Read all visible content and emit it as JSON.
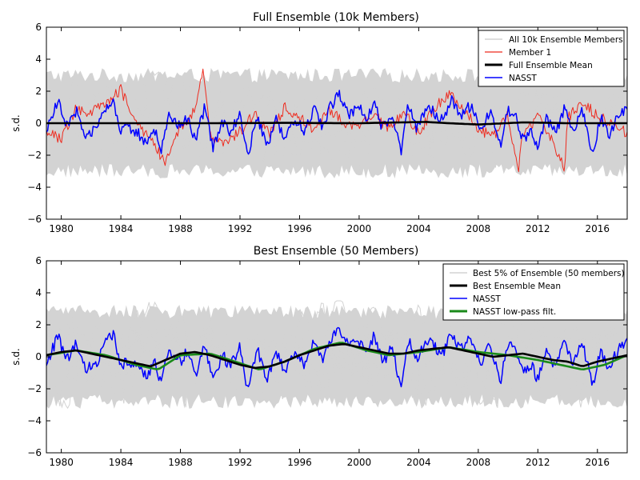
{
  "colors": {
    "ensemble": "#d3d3d3",
    "member": "#ee2b1f",
    "mean": "#000000",
    "nasst": "#0000ff",
    "lowpass": "#1a8a1a"
  },
  "chart_data": [
    {
      "type": "line",
      "title": "Full Ensemble (10k Members)",
      "ylabel": "s.d.",
      "xlabel": "",
      "xlim": [
        1979.0,
        2018.0
      ],
      "ylim": [
        -6,
        6
      ],
      "x_ticks": [
        1980,
        1984,
        1988,
        1992,
        1996,
        2000,
        2004,
        2008,
        2012,
        2016
      ],
      "x_tick_labels": [
        "1980",
        "1984",
        "1988",
        "1992",
        "1996",
        "2000",
        "2004",
        "2008",
        "2012",
        "2016"
      ],
      "y_ticks": [
        -6,
        -4,
        -2,
        0,
        2,
        4,
        6
      ],
      "y_tick_labels": [
        "−6",
        "−4",
        "−2",
        "0",
        "2",
        "4",
        "6"
      ],
      "legend_position": "top-right",
      "envelope": {
        "name": "All 10k Ensemble Members",
        "lower_approx": -3.0,
        "upper_approx": 3.0,
        "extreme_min": -4.6,
        "extreme_max": 4.0
      },
      "series": [
        {
          "name": "Member 1",
          "key": "member",
          "x": [
            1979.0,
            1980.0,
            1981.0,
            1982.0,
            1983.0,
            1984.0,
            1985.0,
            1986.0,
            1987.0,
            1988.0,
            1989.0,
            1989.5,
            1990.0,
            1991.0,
            1992.0,
            1993.0,
            1994.0,
            1995.0,
            1996.0,
            1997.0,
            1998.0,
            1999.0,
            2000.0,
            2001.0,
            2002.0,
            2003.0,
            2004.0,
            2005.0,
            2006.0,
            2007.0,
            2008.0,
            2009.0,
            2010.0,
            2010.7,
            2011.0,
            2012.0,
            2013.0,
            2013.8,
            2014.0,
            2015.0,
            2016.0,
            2017.0,
            2018.0
          ],
          "y": [
            -0.4,
            -1.0,
            0.9,
            0.7,
            1.3,
            2.1,
            0.1,
            -1.0,
            -2.6,
            -0.2,
            0.8,
            3.3,
            -0.8,
            -1.4,
            -0.5,
            0.6,
            -0.7,
            1.0,
            0.3,
            -0.4,
            0.8,
            0.0,
            -0.3,
            0.5,
            -0.4,
            0.7,
            -0.6,
            0.9,
            1.8,
            0.9,
            -0.4,
            -0.8,
            0.5,
            -3.0,
            -0.6,
            0.4,
            -1.2,
            -2.8,
            0.3,
            1.4,
            0.4,
            0.0,
            -0.6
          ]
        },
        {
          "name": "Full Ensemble Mean",
          "key": "mean",
          "x": [
            1979.0,
            1985.0,
            1990.0,
            1995.0,
            2000.0,
            2004.5,
            2006.0,
            2008.0,
            2011.0,
            2014.0,
            2018.0
          ],
          "y": [
            0.0,
            0.0,
            0.0,
            0.02,
            0.0,
            0.08,
            0.0,
            -0.08,
            0.05,
            0.0,
            0.0
          ]
        },
        {
          "name": "NASST",
          "key": "nasst",
          "x": [
            1979.0,
            1979.8,
            1980.3,
            1981.0,
            1981.6,
            1982.5,
            1983.0,
            1983.5,
            1984.0,
            1984.5,
            1985.0,
            1985.8,
            1986.2,
            1986.7,
            1987.2,
            1988.0,
            1988.5,
            1989.0,
            1989.6,
            1990.2,
            1990.8,
            1991.3,
            1992.0,
            1992.5,
            1993.2,
            1993.8,
            1994.4,
            1995.0,
            1995.7,
            1996.3,
            1997.0,
            1997.5,
            1998.1,
            1998.7,
            1999.3,
            2000.0,
            2000.5,
            2001.0,
            2001.6,
            2002.2,
            2002.8,
            2003.3,
            2003.8,
            2004.5,
            2005.0,
            2005.6,
            2006.2,
            2006.8,
            2007.5,
            2008.2,
            2008.8,
            2009.5,
            2010.0,
            2010.6,
            2011.0,
            2011.5,
            2012.0,
            2012.5,
            2013.2,
            2013.8,
            2014.3,
            2015.0,
            2015.7,
            2016.2,
            2016.8,
            2017.3,
            2018.0
          ],
          "y": [
            -0.5,
            1.4,
            -0.3,
            0.8,
            -0.8,
            -0.2,
            0.9,
            1.5,
            -0.6,
            -0.2,
            -0.5,
            -1.3,
            -0.1,
            -1.8,
            0.6,
            -0.3,
            0.4,
            -1.2,
            0.9,
            -1.5,
            0.2,
            -0.6,
            0.6,
            -2.0,
            0.4,
            -1.6,
            0.3,
            -0.9,
            0.2,
            -0.4,
            0.9,
            -0.2,
            1.1,
            1.8,
            0.6,
            1.0,
            0.3,
            1.3,
            -0.4,
            0.6,
            -1.9,
            1.2,
            -0.3,
            1.0,
            0.7,
            0.2,
            1.4,
            0.5,
            1.1,
            -0.5,
            0.8,
            -1.6,
            0.9,
            0.2,
            -1.1,
            -0.4,
            -1.4,
            0.3,
            -0.6,
            1.0,
            -0.5,
            0.8,
            -1.9,
            0.4,
            -0.8,
            0.3,
            1.0
          ]
        }
      ]
    },
    {
      "type": "line",
      "title": "Best Ensemble (50 Members)",
      "ylabel": "s.d.",
      "xlabel": "",
      "xlim": [
        1979.0,
        2018.0
      ],
      "ylim": [
        -6,
        6
      ],
      "x_ticks": [
        1980,
        1984,
        1988,
        1992,
        1996,
        2000,
        2004,
        2008,
        2012,
        2016
      ],
      "x_tick_labels": [
        "1980",
        "1984",
        "1988",
        "1992",
        "1996",
        "2000",
        "2004",
        "2008",
        "2012",
        "2016"
      ],
      "y_ticks": [
        -6,
        -4,
        -2,
        0,
        2,
        4,
        6
      ],
      "y_tick_labels": [
        "−6",
        "−4",
        "−2",
        "0",
        "2",
        "4",
        "6"
      ],
      "legend_position": "top-right",
      "envelope": {
        "name": "Best 5% of Ensemble (50 members)",
        "lower_approx": -2.8,
        "upper_approx": 2.8,
        "extreme_min": -3.9,
        "extreme_max": 3.7
      },
      "series": [
        {
          "name": "Best Ensemble Mean",
          "key": "mean",
          "x": [
            1979.0,
            1980.0,
            1981.0,
            1982.0,
            1983.0,
            1984.0,
            1985.0,
            1986.0,
            1987.0,
            1988.0,
            1989.0,
            1990.0,
            1991.0,
            1992.0,
            1993.0,
            1994.0,
            1995.0,
            1996.0,
            1997.0,
            1998.0,
            1999.0,
            2000.0,
            2001.0,
            2002.0,
            2003.0,
            2004.0,
            2005.0,
            2006.0,
            2007.0,
            2008.0,
            2009.0,
            2010.0,
            2011.0,
            2012.0,
            2013.0,
            2014.0,
            2015.0,
            2016.0,
            2017.0,
            2018.0
          ],
          "y": [
            0.1,
            0.3,
            0.4,
            0.2,
            0.0,
            -0.2,
            -0.4,
            -0.6,
            -0.2,
            0.2,
            0.3,
            0.1,
            -0.2,
            -0.5,
            -0.7,
            -0.6,
            -0.3,
            0.1,
            0.4,
            0.7,
            0.8,
            0.6,
            0.4,
            0.2,
            0.2,
            0.4,
            0.5,
            0.6,
            0.4,
            0.2,
            0.0,
            0.1,
            0.2,
            0.0,
            -0.2,
            -0.3,
            -0.6,
            -0.3,
            -0.1,
            0.1
          ]
        },
        {
          "name": "NASST",
          "key": "nasst",
          "x": [
            1979.0,
            1979.8,
            1980.3,
            1981.0,
            1981.6,
            1982.5,
            1983.0,
            1983.5,
            1984.0,
            1984.5,
            1985.0,
            1985.8,
            1986.2,
            1986.7,
            1987.2,
            1988.0,
            1988.5,
            1989.0,
            1989.6,
            1990.2,
            1990.8,
            1991.3,
            1992.0,
            1992.5,
            1993.2,
            1993.8,
            1994.4,
            1995.0,
            1995.7,
            1996.3,
            1997.0,
            1997.5,
            1998.1,
            1998.7,
            1999.3,
            2000.0,
            2000.5,
            2001.0,
            2001.6,
            2002.2,
            2002.8,
            2003.3,
            2003.8,
            2004.5,
            2005.0,
            2005.6,
            2006.2,
            2006.8,
            2007.5,
            2008.2,
            2008.8,
            2009.5,
            2010.0,
            2010.6,
            2011.0,
            2011.5,
            2012.0,
            2012.5,
            2013.2,
            2013.8,
            2014.3,
            2015.0,
            2015.7,
            2016.2,
            2016.8,
            2017.3,
            2018.0
          ],
          "y": [
            -0.5,
            1.4,
            -0.3,
            0.8,
            -0.8,
            -0.2,
            0.9,
            1.5,
            -0.6,
            -0.2,
            -0.5,
            -1.3,
            -0.1,
            -1.8,
            0.6,
            -0.3,
            0.4,
            -1.2,
            0.9,
            -1.5,
            0.2,
            -0.6,
            0.6,
            -2.0,
            0.4,
            -1.6,
            0.3,
            -0.9,
            0.2,
            -0.4,
            0.9,
            -0.2,
            1.1,
            1.8,
            0.6,
            1.0,
            0.3,
            1.3,
            -0.4,
            0.6,
            -1.9,
            1.2,
            -0.3,
            1.0,
            0.7,
            0.2,
            1.4,
            0.5,
            1.1,
            -0.5,
            0.8,
            -1.6,
            0.9,
            0.2,
            -1.1,
            -0.4,
            -1.4,
            0.3,
            -0.6,
            1.0,
            -0.5,
            0.8,
            -1.9,
            0.4,
            -0.8,
            0.3,
            1.0
          ]
        },
        {
          "name": "NASST low-pass filt.",
          "key": "lowpass",
          "x": [
            1979.0,
            1981.0,
            1983.0,
            1985.0,
            1986.5,
            1988.0,
            1990.0,
            1992.0,
            1993.3,
            1995.0,
            1997.0,
            1998.8,
            2000.5,
            2002.0,
            2004.0,
            2006.0,
            2008.0,
            2010.0,
            2012.0,
            2013.5,
            2015.0,
            2016.5,
            2018.0
          ],
          "y": [
            0.1,
            0.4,
            0.1,
            -0.5,
            -0.8,
            0.1,
            0.2,
            -0.4,
            -0.8,
            -0.3,
            0.5,
            0.9,
            0.4,
            0.1,
            0.3,
            0.6,
            0.3,
            0.1,
            -0.2,
            -0.5,
            -0.8,
            -0.5,
            0.1
          ]
        }
      ]
    }
  ]
}
